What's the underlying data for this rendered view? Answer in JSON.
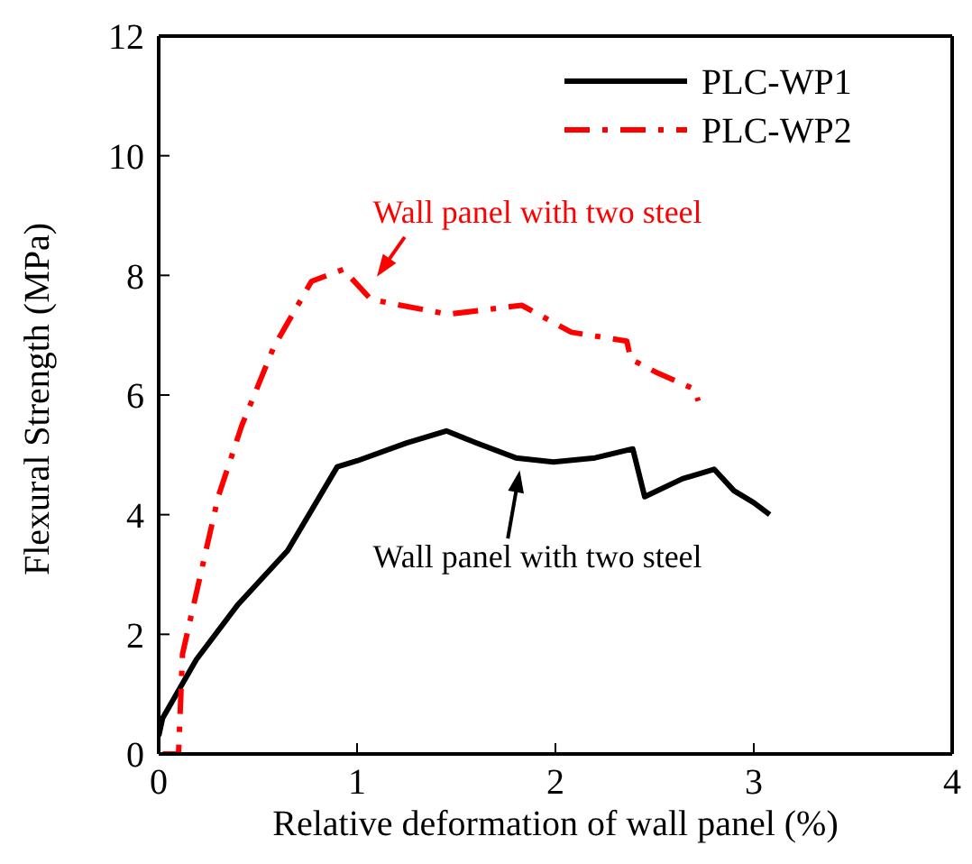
{
  "chart_data": {
    "type": "line",
    "xlabel": "Relative deformation of wall panel (%)",
    "ylabel": "Flexural Strength (MPa)",
    "xlim": [
      0,
      4
    ],
    "xticks": [
      0,
      1,
      2,
      3,
      4
    ],
    "ylim": [
      0,
      12
    ],
    "yticks": [
      0,
      2,
      4,
      6,
      8,
      10,
      12
    ],
    "grid": false,
    "legend": "top right",
    "marker": "none",
    "series": [
      {
        "name": "PLC-WP1",
        "color": "#000000",
        "line_style": "solid",
        "x": [
          0,
          0.02,
          0.19,
          0.4,
          0.65,
          0.9,
          1.0,
          1.25,
          1.45,
          1.6,
          1.8,
          1.99,
          2.2,
          2.39,
          2.45,
          2.64,
          2.8,
          2.9,
          3.0,
          3.08
        ],
        "values": [
          0.3,
          0.6,
          1.58,
          2.5,
          3.4,
          4.8,
          4.9,
          5.2,
          5.4,
          5.2,
          4.95,
          4.88,
          4.95,
          5.1,
          4.3,
          4.6,
          4.76,
          4.4,
          4.2,
          4.0
        ]
      },
      {
        "name": "PLC-WP2",
        "color": "#ff0000",
        "line_style": "dashed",
        "x": [
          0.02,
          0.1,
          0.12,
          0.3,
          0.42,
          0.58,
          0.77,
          0.93,
          1.07,
          1.22,
          1.46,
          1.83,
          2.08,
          2.36,
          2.38,
          2.52,
          2.7,
          2.72
        ],
        "values": [
          0,
          0,
          1.67,
          4.3,
          5.5,
          6.8,
          7.9,
          8.1,
          7.6,
          7.5,
          7.35,
          7.5,
          7.05,
          6.9,
          6.6,
          6.36,
          6.1,
          5.9
        ]
      }
    ],
    "annotations": [
      "Wall panel with two steel",
      "Wall panel with two steel"
    ]
  }
}
